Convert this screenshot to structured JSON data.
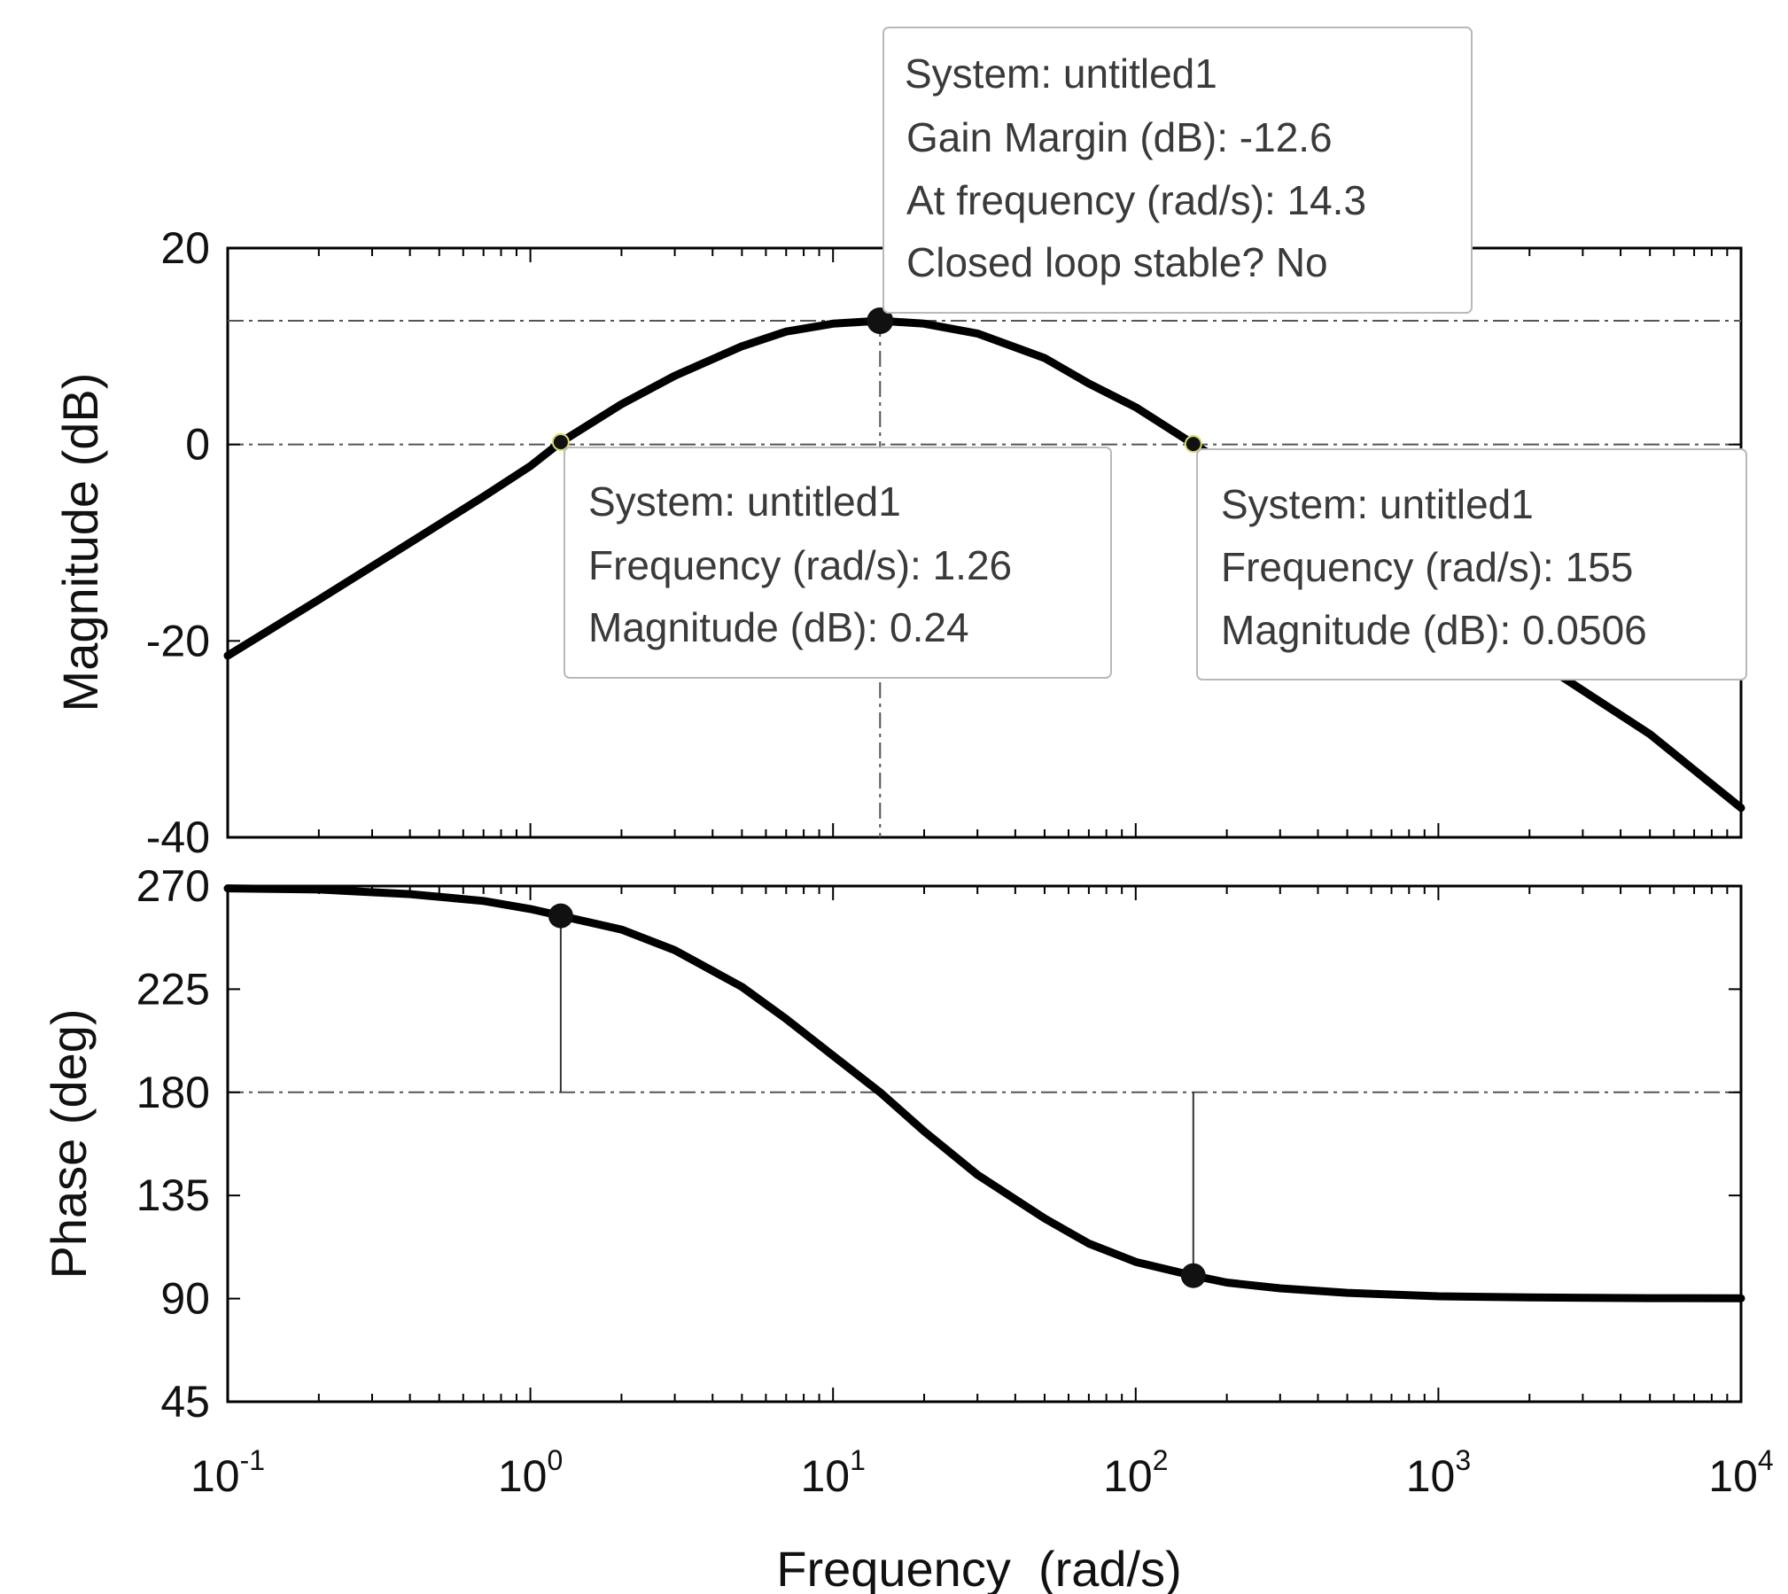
{
  "chart_data": {
    "type": "line",
    "title": "",
    "xlabel": "Frequency  (rad/s)",
    "x_scale": "log",
    "xlim": [
      0.1,
      10000
    ],
    "x_ticks": [
      {
        "value": 0.1,
        "base": "10",
        "exp": "-1"
      },
      {
        "value": 1,
        "base": "10",
        "exp": "0"
      },
      {
        "value": 10,
        "base": "10",
        "exp": "1"
      },
      {
        "value": 100,
        "base": "10",
        "exp": "2"
      },
      {
        "value": 1000,
        "base": "10",
        "exp": "3"
      },
      {
        "value": 10000,
        "base": "10",
        "exp": "4"
      }
    ],
    "magnitude": {
      "ylabel": "Magnitude (dB)",
      "ylim": [
        -40,
        20
      ],
      "y_ticks": [
        {
          "value": 20,
          "label": "20"
        },
        {
          "value": 0,
          "label": "0"
        },
        {
          "value": -20,
          "label": "-20"
        },
        {
          "value": -40,
          "label": "-40"
        }
      ],
      "series": [
        {
          "x": [
            0.1,
            0.2,
            0.4,
            0.7,
            1,
            1.26,
            2,
            3,
            5,
            7,
            10,
            14.3,
            20,
            30,
            50,
            70,
            100,
            155,
            200,
            300,
            500,
            1000,
            2000,
            5000,
            10000
          ],
          "values": [
            -21.5,
            -15.8,
            -10.0,
            -5.3,
            -2.2,
            0.24,
            4.1,
            7.0,
            10.0,
            11.5,
            12.3,
            12.6,
            12.3,
            11.3,
            8.8,
            6.2,
            3.8,
            0.05,
            -2.0,
            -5.3,
            -9.5,
            -15.5,
            -21.5,
            -29.5,
            -37.0
          ]
        }
      ],
      "reference_levels": [
        12.6,
        0
      ],
      "tips": [
        {
          "lines": [
            "System: untitled1",
            "Gain Margin (dB): -12.6",
            "At frequency (rad/s): 14.3",
            "Closed loop stable? No"
          ],
          "marker": {
            "x": 14.3,
            "y": 12.6
          }
        },
        {
          "lines": [
            "System: untitled1",
            "Frequency (rad/s): 1.26",
            "Magnitude (dB): 0.24"
          ],
          "marker": {
            "x": 1.26,
            "y": 0.24
          }
        },
        {
          "lines": [
            "System: untitled1",
            "Frequency (rad/s): 155",
            "Magnitude (dB): 0.0506"
          ],
          "marker": {
            "x": 155,
            "y": 0.0506
          }
        }
      ]
    },
    "phase": {
      "ylabel": "Phase (deg)",
      "ylim": [
        45,
        270
      ],
      "y_ticks": [
        {
          "value": 270,
          "label": "270"
        },
        {
          "value": 225,
          "label": "225"
        },
        {
          "value": 180,
          "label": "180"
        },
        {
          "value": 135,
          "label": "135"
        },
        {
          "value": 90,
          "label": "90"
        },
        {
          "value": 45,
          "label": "45"
        }
      ],
      "series": [
        {
          "x": [
            0.1,
            0.2,
            0.4,
            0.7,
            1,
            1.26,
            2,
            3,
            5,
            7,
            10,
            14.3,
            20,
            30,
            50,
            70,
            100,
            155,
            200,
            300,
            500,
            1000,
            2000,
            5000,
            10000
          ],
          "values": [
            269.0,
            268.5,
            266.5,
            263.5,
            260.0,
            257.0,
            251.0,
            242.0,
            226.0,
            212.0,
            196.0,
            180.0,
            163.0,
            144.0,
            125.0,
            114.0,
            106.0,
            100.0,
            97.0,
            94.5,
            92.5,
            91.0,
            90.5,
            90.2,
            90.1
          ]
        }
      ],
      "reference_levels": [
        180
      ],
      "markers": [
        {
          "x": 1.26,
          "y": 257.0
        },
        {
          "x": 155,
          "y": 100.0
        }
      ]
    }
  }
}
